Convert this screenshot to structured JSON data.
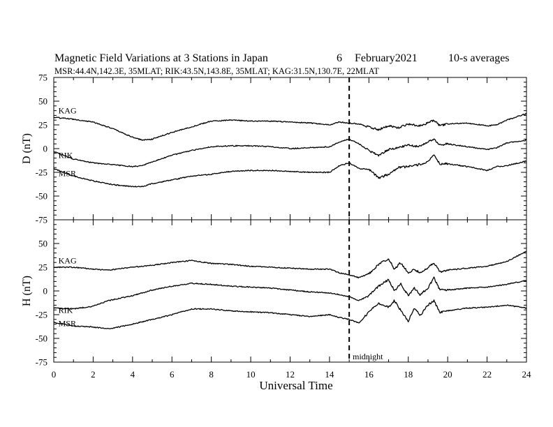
{
  "chart_data": {
    "type": "line",
    "title": {
      "main": "Magnetic Field Variations at 3 Stations in Japan",
      "day": "6",
      "month_year": "February2021",
      "averaging": "10-s averages"
    },
    "subtitle": "MSR:44.4N,142.3E, 35MLAT;  RIK:43.5N,143.8E, 35MLAT;  KAG:31.5N,130.7E, 22MLAT",
    "xlabel": "Universal Time",
    "xlim": [
      0,
      24
    ],
    "x_ticks": [
      0,
      2,
      4,
      6,
      8,
      10,
      12,
      14,
      16,
      18,
      20,
      22,
      24
    ],
    "x_tick_labels": [
      "0",
      "2",
      "4",
      "6",
      "8",
      "10",
      "12",
      "14",
      "16",
      "18",
      "20",
      "22",
      "24"
    ],
    "grid": false,
    "annotations": [
      {
        "x": 15,
        "style": "dashed-vertical",
        "label": "midnight"
      }
    ],
    "panels": [
      {
        "ylabel": "D (nT)",
        "ylim": [
          -75,
          75
        ],
        "y_ticks": [
          75,
          50,
          25,
          0,
          -25,
          -50,
          -75
        ],
        "y_tick_labels": [
          "75",
          "50",
          "25",
          "0",
          "-25",
          "-50",
          "-75"
        ],
        "series": [
          {
            "name": "KAG",
            "label_x": 0.2,
            "label_y": 37,
            "x": [
              0,
              1,
              2,
              3,
              4,
              4.5,
              5,
              6,
              7,
              8,
              9,
              10,
              11,
              12,
              13,
              14,
              14.5,
              15,
              15.5,
              16,
              16.5,
              17,
              17.5,
              18,
              18.5,
              19,
              19.3,
              19.6,
              20,
              21,
              22,
              22.5,
              23,
              24
            ],
            "y": [
              33,
              31,
              28,
              21,
              12,
              9,
              10,
              17,
              23,
              29,
              30,
              29,
              29,
              28,
              27,
              25,
              28,
              27,
              26,
              23,
              20,
              24,
              22,
              26,
              24,
              27,
              30,
              24,
              26,
              27,
              24,
              25,
              30,
              37
            ]
          },
          {
            "name": "RIK",
            "label_x": 0.2,
            "label_y": -10,
            "x": [
              0,
              1,
              2,
              3,
              4,
              4.5,
              5,
              6,
              7,
              8,
              9,
              10,
              11,
              12,
              13,
              14,
              14.5,
              15,
              15.5,
              16,
              16.5,
              17,
              17.5,
              18,
              18.5,
              19,
              19.3,
              19.6,
              20,
              21,
              22,
              22.5,
              23,
              24
            ],
            "y": [
              -3,
              -11,
              -15,
              -17,
              -19,
              -18,
              -14,
              -7,
              -2,
              2,
              3,
              3,
              2,
              0,
              1,
              2,
              7,
              10,
              5,
              -2,
              -7,
              -1,
              1,
              4,
              2,
              7,
              10,
              4,
              5,
              2,
              -1,
              1,
              6,
              9
            ]
          },
          {
            "name": "MSR",
            "label_x": 0.2,
            "label_y": -29,
            "x": [
              0,
              1,
              2,
              3,
              4,
              4.5,
              5,
              6,
              7,
              8,
              9,
              10,
              11,
              12,
              13,
              14,
              14.5,
              15,
              15.5,
              16,
              16.5,
              17,
              17.5,
              18,
              18.5,
              19,
              19.3,
              19.6,
              20,
              21,
              22,
              22.5,
              23,
              24
            ],
            "y": [
              -21,
              -29,
              -34,
              -38,
              -40,
              -40,
              -37,
              -33,
              -29,
              -27,
              -24,
              -23,
              -23,
              -24,
              -25,
              -25,
              -18,
              -15,
              -21,
              -22,
              -31,
              -27,
              -20,
              -19,
              -17,
              -14,
              -7,
              -16,
              -16,
              -19,
              -23,
              -19,
              -18,
              -13
            ]
          }
        ]
      },
      {
        "ylabel": "H (nT)",
        "ylim": [
          -75,
          75
        ],
        "y_ticks": [
          75,
          50,
          25,
          0,
          -25,
          -50,
          -75
        ],
        "y_tick_labels": [
          "75",
          "50",
          "25",
          "0",
          "-25",
          "-50",
          "-75"
        ],
        "series": [
          {
            "name": "KAG",
            "label_x": 0.2,
            "label_y": 29,
            "x": [
              0,
              1,
              2,
              2.8,
              4,
              5,
              6,
              7,
              8,
              9,
              10,
              11,
              12,
              13,
              14,
              14.5,
              15,
              15.5,
              16,
              16.5,
              17,
              17.3,
              17.6,
              18,
              18.3,
              18.6,
              19,
              19.3,
              19.6,
              20,
              21,
              22,
              23,
              24
            ],
            "y": [
              25,
              25,
              23,
              22,
              25,
              27,
              30,
              32,
              29,
              28,
              26,
              25,
              24,
              23,
              23,
              19,
              17,
              14,
              18,
              28,
              34,
              23,
              30,
              19,
              23,
              19,
              24,
              30,
              20,
              22,
              24,
              26,
              31,
              42
            ]
          },
          {
            "name": "RIK",
            "label_x": 0.2,
            "label_y": -23,
            "x": [
              0,
              1,
              2,
              2.8,
              4,
              5,
              6,
              7,
              8,
              9,
              10,
              11,
              12,
              13,
              14,
              14.5,
              15,
              15.5,
              16,
              16.5,
              17,
              17.3,
              17.6,
              18,
              18.3,
              18.6,
              19,
              19.3,
              19.6,
              20,
              21,
              22,
              23,
              24
            ],
            "y": [
              -18,
              -19,
              -16,
              -10,
              -5,
              1,
              5,
              8,
              7,
              5,
              4,
              3,
              1,
              -1,
              -2,
              -4,
              -6,
              -10,
              -5,
              5,
              12,
              0,
              8,
              -5,
              3,
              -4,
              3,
              14,
              1,
              1,
              3,
              4,
              7,
              11
            ]
          },
          {
            "name": "MSR",
            "label_x": 0.2,
            "label_y": -37,
            "x": [
              0,
              1,
              2,
              2.8,
              4,
              5,
              6,
              7,
              8,
              9,
              10,
              11,
              12,
              13,
              14,
              14.5,
              15,
              15.5,
              16,
              16.5,
              17,
              17.3,
              17.6,
              18,
              18.3,
              18.6,
              19,
              19.3,
              19.6,
              20,
              21,
              22,
              23,
              24
            ],
            "y": [
              -33,
              -37,
              -38,
              -40,
              -35,
              -30,
              -25,
              -19,
              -19,
              -21,
              -22,
              -23,
              -25,
              -27,
              -25,
              -28,
              -30,
              -34,
              -22,
              -13,
              -17,
              -10,
              -20,
              -32,
              -18,
              -26,
              -15,
              -10,
              -23,
              -21,
              -18,
              -17,
              -15,
              -18
            ]
          }
        ]
      }
    ]
  }
}
